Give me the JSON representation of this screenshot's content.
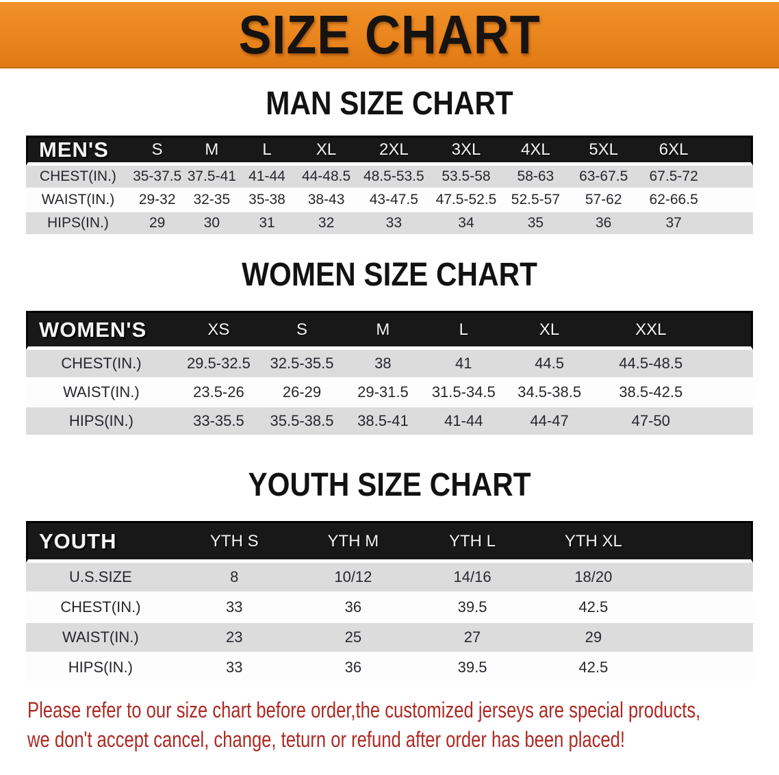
{
  "banner": {
    "title": "SIZE CHART",
    "bg_color": "#ea851e",
    "text_color": "#161310"
  },
  "colors": {
    "header_bar": "#181818",
    "row_gray": "#dcdcdc",
    "row_white": "#fdfdfd",
    "disclaimer_red": "#ad2a23"
  },
  "sections": [
    {
      "heading": "MAN SIZE CHART",
      "table": {
        "label": "MEN'S",
        "columns": [
          "S",
          "M",
          "L",
          "XL",
          "2XL",
          "3XL",
          "4XL",
          "5XL",
          "6XL"
        ],
        "rows": [
          {
            "label": "CHEST(IN.)",
            "values": [
              "35-37.5",
              "37.5-41",
              "41-44",
              "44-48.5",
              "48.5-53.5",
              "53.5-58",
              "58-63",
              "63-67.5",
              "67.5-72"
            ]
          },
          {
            "label": "WAIST(IN.)",
            "values": [
              "29-32",
              "32-35",
              "35-38",
              "38-43",
              "43-47.5",
              "47.5-52.5",
              "52.5-57",
              "57-62",
              "62-66.5"
            ]
          },
          {
            "label": "HIPS(IN.)",
            "values": [
              "29",
              "30",
              "31",
              "32",
              "33",
              "34",
              "35",
              "36",
              "37"
            ]
          }
        ]
      }
    },
    {
      "heading": "WOMEN SIZE CHART",
      "table": {
        "label": "WOMEN'S",
        "columns": [
          "XS",
          "S",
          "M",
          "L",
          "XL",
          "XXL"
        ],
        "rows": [
          {
            "label": "CHEST(IN.)",
            "values": [
              "29.5-32.5",
              "32.5-35.5",
              "38",
              "41",
              "44.5",
              "44.5-48.5"
            ]
          },
          {
            "label": "WAIST(IN.)",
            "values": [
              "23.5-26",
              "26-29",
              "29-31.5",
              "31.5-34.5",
              "34.5-38.5",
              "38.5-42.5"
            ]
          },
          {
            "label": "HIPS(IN.)",
            "values": [
              "33-35.5",
              "35.5-38.5",
              "38.5-41",
              "41-44",
              "44-47",
              "47-50"
            ]
          }
        ]
      }
    },
    {
      "heading": "YOUTH SIZE CHART",
      "table": {
        "label": "YOUTH",
        "columns": [
          "YTH S",
          "YTH M",
          "YTH L",
          "YTH XL"
        ],
        "rows": [
          {
            "label": "U.S.SIZE",
            "values": [
              "8",
              "10/12",
              "14/16",
              "18/20"
            ]
          },
          {
            "label": "CHEST(IN.)",
            "values": [
              "33",
              "36",
              "39.5",
              "42.5"
            ]
          },
          {
            "label": "WAIST(IN.)",
            "values": [
              "23",
              "25",
              "27",
              "29"
            ]
          },
          {
            "label": "HIPS(IN.)",
            "values": [
              "33",
              "36",
              "39.5",
              "42.5"
            ]
          }
        ]
      }
    }
  ],
  "footer": {
    "line1": "Please refer to our size chart before order,the customized jerseys are special products,",
    "line2": "we don't accept cancel, change, teturn or refund after order has been placed!"
  }
}
